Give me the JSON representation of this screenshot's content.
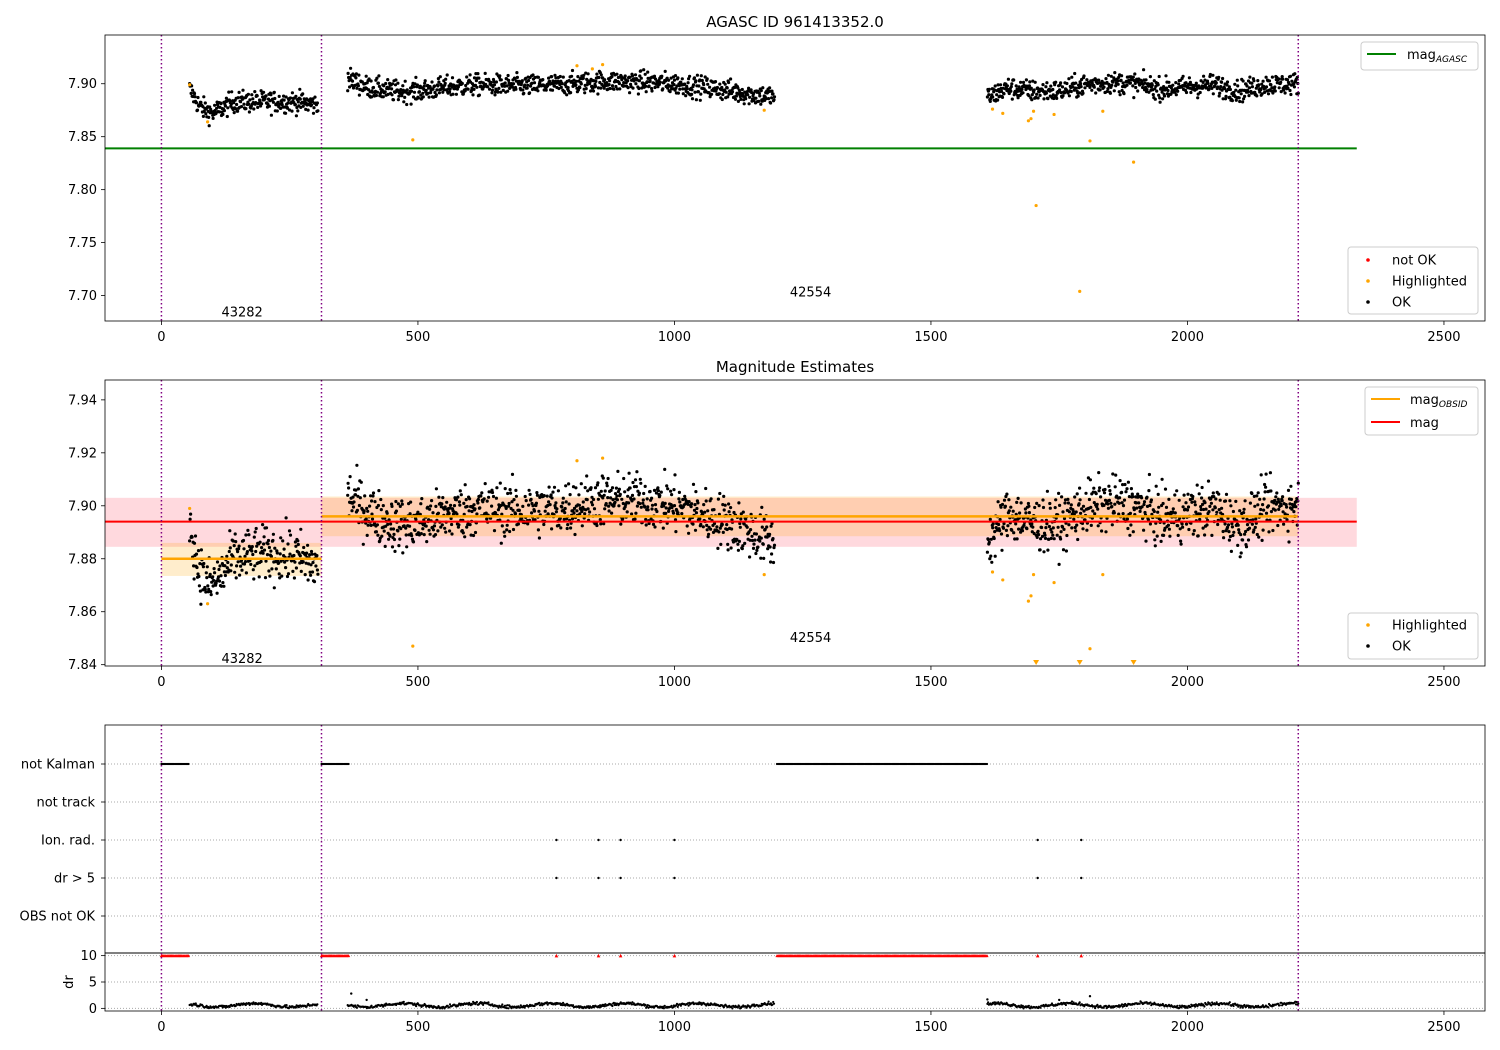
{
  "chart_data": [
    {
      "type": "scatter",
      "title": "AGASC ID 961413352.0",
      "xlim": [
        -110,
        2580
      ],
      "ylim": [
        7.676,
        7.946
      ],
      "xticks": [
        0,
        500,
        1000,
        1500,
        2000,
        2500
      ],
      "xtick_labels": [
        "0",
        "500",
        "1000",
        "1500",
        "2000",
        "2500"
      ],
      "yticks": [
        7.7,
        7.75,
        7.8,
        7.85,
        7.9
      ],
      "ytick_labels": [
        "7.70",
        "7.75",
        "7.80",
        "7.85",
        "7.90"
      ],
      "obs_boundaries": [
        0,
        312,
        2216
      ],
      "obs_labels": [
        {
          "text": "43282",
          "x": 156,
          "y": 7.685
        },
        {
          "text": "42554",
          "x": 1264,
          "y": 7.704
        }
      ],
      "reference_line": {
        "name": "mag_AGASC",
        "label_main": "mag",
        "label_sub": "AGASC",
        "value": 7.839,
        "x_range": [
          -110,
          2330
        ],
        "color": "#008000"
      },
      "ok_segments": [
        {
          "x_range": [
            55,
            305
          ],
          "trend": [
            [
              55,
              7.895
            ],
            [
              75,
              7.878
            ],
            [
              100,
              7.872
            ],
            [
              140,
              7.883
            ],
            [
              200,
              7.883
            ],
            [
              260,
              7.883
            ],
            [
              305,
              7.88
            ]
          ],
          "noise": 0.005
        },
        {
          "x_range": [
            363,
            1195
          ],
          "trend": [
            [
              363,
              7.905
            ],
            [
              400,
              7.897
            ],
            [
              450,
              7.893
            ],
            [
              500,
              7.893
            ],
            [
              560,
              7.897
            ],
            [
              620,
              7.899
            ],
            [
              700,
              7.898
            ],
            [
              780,
              7.899
            ],
            [
              850,
              7.902
            ],
            [
              930,
              7.902
            ],
            [
              1000,
              7.9
            ],
            [
              1050,
              7.897
            ],
            [
              1100,
              7.894
            ],
            [
              1150,
              7.89
            ],
            [
              1195,
              7.888
            ]
          ],
          "noise": 0.005
        },
        {
          "x_range": [
            1610,
            2216
          ],
          "trend": [
            [
              1610,
              7.887
            ],
            [
              1650,
              7.896
            ],
            [
              1700,
              7.893
            ],
            [
              1750,
              7.893
            ],
            [
              1800,
              7.899
            ],
            [
              1850,
              7.901
            ],
            [
              1900,
              7.9
            ],
            [
              1950,
              7.895
            ],
            [
              2000,
              7.897
            ],
            [
              2050,
              7.899
            ],
            [
              2100,
              7.893
            ],
            [
              2150,
              7.899
            ],
            [
              2216,
              7.9
            ]
          ],
          "noise": 0.005
        }
      ],
      "highlighted_points": [
        [
          55,
          7.899
        ],
        [
          90,
          7.864
        ],
        [
          490,
          7.847
        ],
        [
          810,
          7.917
        ],
        [
          840,
          7.914
        ],
        [
          860,
          7.918
        ],
        [
          1175,
          7.875
        ],
        [
          1620,
          7.876
        ],
        [
          1640,
          7.872
        ],
        [
          1690,
          7.865
        ],
        [
          1695,
          7.867
        ],
        [
          1700,
          7.874
        ],
        [
          1705,
          7.785
        ],
        [
          1740,
          7.871
        ],
        [
          1790,
          7.704
        ],
        [
          1810,
          7.846
        ],
        [
          1835,
          7.874
        ],
        [
          1895,
          7.826
        ]
      ],
      "legends": [
        {
          "position": "upper-right",
          "entries": [
            {
              "label": "mag",
              "sub": "AGASC",
              "kind": "line",
              "color": "#008000"
            }
          ]
        },
        {
          "position": "lower-right",
          "entries": [
            {
              "label": "not OK",
              "kind": "dot",
              "color": "#ff0000"
            },
            {
              "label": "Highlighted",
              "kind": "dot",
              "color": "#ffa500"
            },
            {
              "label": "OK",
              "kind": "dot",
              "color": "#000000"
            }
          ]
        }
      ]
    },
    {
      "type": "scatter",
      "title": "Magnitude Estimates",
      "xlim": [
        -110,
        2580
      ],
      "ylim": [
        7.8395,
        7.9475
      ],
      "xticks": [
        0,
        500,
        1000,
        1500,
        2000,
        2500
      ],
      "xtick_labels": [
        "0",
        "500",
        "1000",
        "1500",
        "2000",
        "2500"
      ],
      "yticks": [
        7.84,
        7.86,
        7.88,
        7.9,
        7.92,
        7.94
      ],
      "ytick_labels": [
        "7.84",
        "7.86",
        "7.88",
        "7.90",
        "7.92",
        "7.94"
      ],
      "obs_boundaries": [
        0,
        312,
        2216
      ],
      "obs_labels": [
        {
          "text": "43282",
          "x": 156,
          "y": 7.8425
        },
        {
          "text": "42554",
          "x": 1264,
          "y": 7.8505
        }
      ],
      "mag_line": {
        "label": "mag",
        "value": 7.894,
        "band": [
          7.8845,
          7.903
        ],
        "x_range": [
          -110,
          2330
        ],
        "color": "#ff0000",
        "band_color": "#ffc0c8"
      },
      "mag_obsid": [
        {
          "value": 7.88,
          "band": [
            7.8735,
            7.886
          ],
          "x_range": [
            0,
            312
          ]
        },
        {
          "value": 7.896,
          "band": [
            7.8885,
            7.9035
          ],
          "x_range": [
            312,
            2216
          ]
        }
      ],
      "mag_obsid_color": "#ffa500",
      "ok_segments": [
        {
          "x_range": [
            55,
            305
          ],
          "trend": [
            [
              55,
              7.893
            ],
            [
              70,
              7.878
            ],
            [
              90,
              7.87
            ],
            [
              110,
              7.872
            ],
            [
              140,
              7.88
            ],
            [
              200,
              7.882
            ],
            [
              260,
              7.881
            ],
            [
              305,
              7.877
            ]
          ],
          "noise": 0.005
        },
        {
          "x_range": [
            363,
            1195
          ],
          "trend": [
            [
              363,
              7.904
            ],
            [
              400,
              7.898
            ],
            [
              450,
              7.893
            ],
            [
              500,
              7.893
            ],
            [
              560,
              7.897
            ],
            [
              620,
              7.899
            ],
            [
              700,
              7.898
            ],
            [
              780,
              7.899
            ],
            [
              850,
              7.902
            ],
            [
              930,
              7.902
            ],
            [
              1000,
              7.9
            ],
            [
              1050,
              7.897
            ],
            [
              1100,
              7.894
            ],
            [
              1150,
              7.89
            ],
            [
              1195,
              7.886
            ]
          ],
          "noise": 0.005
        },
        {
          "x_range": [
            1610,
            2216
          ],
          "trend": [
            [
              1610,
              7.886
            ],
            [
              1650,
              7.897
            ],
            [
              1700,
              7.893
            ],
            [
              1750,
              7.893
            ],
            [
              1800,
              7.899
            ],
            [
              1850,
              7.901
            ],
            [
              1900,
              7.9
            ],
            [
              1950,
              7.895
            ],
            [
              2000,
              7.897
            ],
            [
              2050,
              7.899
            ],
            [
              2100,
              7.892
            ],
            [
              2150,
              7.899
            ],
            [
              2216,
              7.9
            ]
          ],
          "noise": 0.005
        }
      ],
      "highlighted_points": [
        [
          55,
          7.899
        ],
        [
          90,
          7.863
        ],
        [
          490,
          7.847
        ],
        [
          810,
          7.917
        ],
        [
          860,
          7.918
        ],
        [
          1175,
          7.874
        ],
        [
          1620,
          7.875
        ],
        [
          1640,
          7.872
        ],
        [
          1690,
          7.864
        ],
        [
          1695,
          7.866
        ],
        [
          1700,
          7.874
        ],
        [
          1740,
          7.871
        ],
        [
          1810,
          7.846
        ],
        [
          1835,
          7.874
        ]
      ],
      "clipped_points": [
        1705,
        1790,
        1895
      ],
      "legends": [
        {
          "position": "upper-right",
          "entries": [
            {
              "label": "mag",
              "sub": "OBSID",
              "kind": "line",
              "color": "#ffa500"
            },
            {
              "label": "mag",
              "kind": "line",
              "color": "#ff0000"
            }
          ]
        },
        {
          "position": "lower-right",
          "entries": [
            {
              "label": "Highlighted",
              "kind": "dot",
              "color": "#ffa500"
            },
            {
              "label": "OK",
              "kind": "dot",
              "color": "#000000"
            }
          ]
        }
      ]
    },
    {
      "type": "scatter",
      "title": "",
      "xlim": [
        -110,
        2580
      ],
      "xticks": [
        0,
        500,
        1000,
        1500,
        2000,
        2500
      ],
      "xtick_labels": [
        "0",
        "500",
        "1000",
        "1500",
        "2000",
        "2500"
      ],
      "obs_boundaries": [
        0,
        312,
        2216
      ],
      "flag_rows": [
        {
          "label": "not Kalman",
          "x_ranges": [
            [
              0,
              55
            ],
            [
              312,
              365
            ],
            [
              1200,
              1610
            ]
          ]
        },
        {
          "label": "not track",
          "x_ranges": []
        },
        {
          "label": "Ion. rad.",
          "points": [
            770,
            852,
            895,
            1000,
            1708,
            1793
          ]
        },
        {
          "label": "dr > 5",
          "points": [
            770,
            852,
            895,
            1000,
            1708,
            1793
          ]
        },
        {
          "label": "OBS not OK",
          "x_ranges": []
        }
      ],
      "dr": {
        "ylabel": "dr",
        "ylim": [
          -0.5,
          10.5
        ],
        "yticks": [
          0,
          5,
          10
        ],
        "ytick_labels": [
          "0",
          "5",
          "10"
        ],
        "capped_value": 10,
        "capped_ranges": [
          [
            0,
            55
          ],
          [
            312,
            365
          ],
          [
            1200,
            1610
          ]
        ],
        "capped_points": [
          770,
          852,
          895,
          1000,
          1708,
          1793
        ],
        "capped_color": "#ff0000",
        "ok_segments": [
          [
            55,
            305
          ],
          [
            363,
            1195
          ],
          [
            1610,
            2216
          ]
        ],
        "typical_value": 0.6,
        "outliers": [
          [
            370,
            2.8
          ],
          [
            400,
            1.6
          ],
          [
            1610,
            1.7
          ],
          [
            1750,
            1.6
          ],
          [
            1810,
            2.3
          ]
        ]
      }
    }
  ]
}
